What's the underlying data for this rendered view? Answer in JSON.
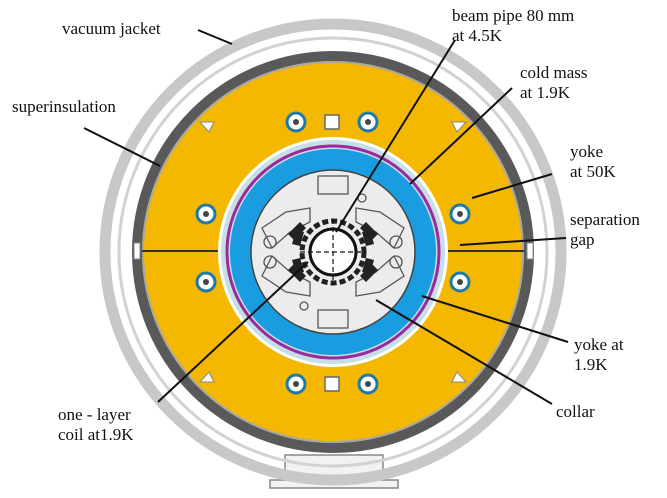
{
  "labels": {
    "vacuum_jacket": "vacuum jacket",
    "superinsulation": "superinsulation",
    "beam_pipe": "beam pipe 80 mm\nat 4.5K",
    "cold_mass": "cold mass\nat 1.9K",
    "yoke_50k": "yoke\nat 50K",
    "separation_gap": "separation\ngap",
    "yoke_19k": "yoke at\n1.9K",
    "collar": "collar",
    "coil": "one - layer\ncoil at1.9K"
  },
  "colors": {
    "outer_ring": "#c8c8c8",
    "shell_dark": "#595959",
    "yoke_warm": "#f5b800",
    "insulation_ring": "#c6dfe6",
    "magenta_line": "#9c2a9c",
    "yoke_cold": "#1a9de0",
    "collar_fill": "#ececec",
    "coil_block": "#222222",
    "hole_blue": "#1f7aa8"
  }
}
